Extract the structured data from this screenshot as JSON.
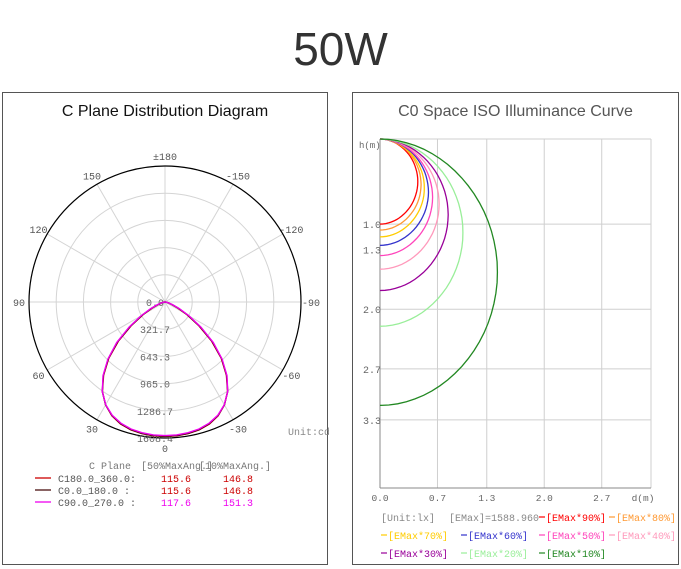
{
  "page": {
    "title": "50W"
  },
  "chart_data": [
    {
      "type": "polar",
      "title": "C Plane Distribution Diagram",
      "unit_label": "Unit:cd",
      "angle_labels": [
        {
          "deg": 180,
          "text": "±180"
        },
        {
          "deg": 150,
          "text": "150"
        },
        {
          "deg": -150,
          "text": "-150"
        },
        {
          "deg": 120,
          "text": "120"
        },
        {
          "deg": -120,
          "text": "-120"
        },
        {
          "deg": 90,
          "text": "90"
        },
        {
          "deg": -90,
          "text": "-90"
        },
        {
          "deg": 60,
          "text": "60"
        },
        {
          "deg": -60,
          "text": "-60"
        },
        {
          "deg": 30,
          "text": "30"
        },
        {
          "deg": -30,
          "text": "-30"
        },
        {
          "deg": 0,
          "text": "0"
        }
      ],
      "radial_ticks": [
        0.0,
        321.7,
        643.3,
        965.0,
        1286.7,
        1608.4
      ],
      "radial_tick_labels": [
        "0.0",
        "321.7",
        "643.3",
        "965.0",
        "1286.7",
        "1608.4"
      ],
      "rmax": 1608.4,
      "curve_angles": [
        -90,
        -85,
        -80,
        -75,
        -70,
        -65,
        -60,
        -55,
        -50,
        -45,
        -40,
        -35,
        -30,
        -25,
        -20,
        -15,
        -10,
        -5,
        0,
        5,
        10,
        15,
        20,
        25,
        30,
        35,
        40,
        45,
        50,
        55,
        60,
        65,
        70,
        75,
        80,
        85,
        90
      ],
      "series": [
        {
          "name": "C180.0_360.0:",
          "color": "#cc0000",
          "beam50": "115.6",
          "beam10": "146.8",
          "values": [
            0,
            8,
            20,
            42,
            85,
            165,
            300,
            490,
            720,
            940,
            1130,
            1290,
            1405,
            1485,
            1535,
            1565,
            1580,
            1588,
            1589,
            1588,
            1580,
            1565,
            1535,
            1485,
            1405,
            1290,
            1130,
            940,
            720,
            490,
            300,
            165,
            85,
            42,
            20,
            8,
            0
          ]
        },
        {
          "name": "C0.0_180.0  :",
          "color": "#4a1010",
          "beam50": "115.6",
          "beam10": "146.8",
          "values": [
            0,
            9,
            22,
            45,
            90,
            172,
            310,
            500,
            730,
            948,
            1135,
            1292,
            1405,
            1483,
            1532,
            1562,
            1578,
            1586,
            1588,
            1586,
            1578,
            1562,
            1532,
            1483,
            1405,
            1292,
            1135,
            948,
            730,
            500,
            310,
            172,
            90,
            45,
            22,
            9,
            0
          ]
        },
        {
          "name": "C90.0_270.0 :",
          "color": "#ee00ee",
          "beam50": "117.6",
          "beam10": "151.3",
          "values": [
            0,
            10,
            25,
            52,
            100,
            190,
            330,
            520,
            745,
            955,
            1140,
            1292,
            1402,
            1478,
            1525,
            1555,
            1570,
            1578,
            1580,
            1578,
            1570,
            1555,
            1525,
            1478,
            1402,
            1292,
            1140,
            955,
            745,
            520,
            330,
            190,
            100,
            52,
            25,
            10,
            0
          ]
        }
      ],
      "legend_headers": {
        "plane": "C Plane",
        "beam50": "[50%MaxAng.]",
        "beam10": "[10%MaxAng.]"
      }
    },
    {
      "type": "line",
      "title": "C0 Space ISO Illuminance Curve",
      "ylabel": "h(m)",
      "xlabel": "d(m)",
      "x_ticks": [
        "0.0",
        "0.7",
        "1.3",
        "2.0",
        "2.7",
        "d(m)"
      ],
      "x_tick_values": [
        0,
        0.7,
        1.3,
        2.0,
        2.7
      ],
      "xlim": [
        0,
        3.3
      ],
      "y_ticks": [
        {
          "value": 1.0,
          "label": "1.0"
        },
        {
          "value": 1.3,
          "label": "1.3"
        },
        {
          "value": 2.0,
          "label": "2.0"
        },
        {
          "value": 2.7,
          "label": "2.7"
        },
        {
          "value": 3.3,
          "label": "3.3"
        }
      ],
      "ylim": [
        0,
        4.1
      ],
      "unit": "[Unit:lx]",
      "emax": "[EMax]=1588.960",
      "series": [
        {
          "name": "[EMax*90%]",
          "color": "#ff0000",
          "depth": 1.0,
          "width": 0.46
        },
        {
          "name": "[EMax*80%]",
          "color": "#ff9933",
          "depth": 1.07,
          "width": 0.5
        },
        {
          "name": "[EMax*70%]",
          "color": "#ffcc00",
          "depth": 1.15,
          "width": 0.54
        },
        {
          "name": "[EMax*60%]",
          "color": "#3333cc",
          "depth": 1.25,
          "width": 0.59
        },
        {
          "name": "[EMax*50%]",
          "color": "#ff44bb",
          "depth": 1.37,
          "width": 0.64
        },
        {
          "name": "[EMax*40%]",
          "color": "#ff99bb",
          "depth": 1.53,
          "width": 0.72
        },
        {
          "name": "[EMax*30%]",
          "color": "#990099",
          "depth": 1.78,
          "width": 0.83
        },
        {
          "name": "[EMax*20%]",
          "color": "#99ee99",
          "depth": 2.2,
          "width": 1.01
        },
        {
          "name": "[EMax*10%]",
          "color": "#228822",
          "depth": 3.13,
          "width": 1.43
        }
      ]
    }
  ]
}
